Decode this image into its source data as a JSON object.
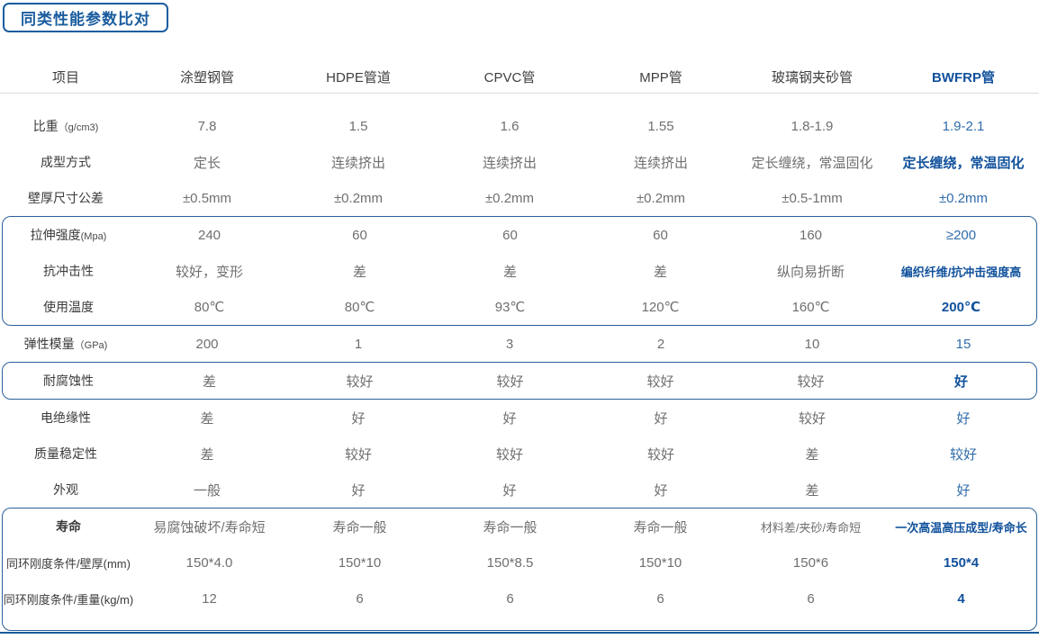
{
  "title": "同类性能参数比对",
  "colors": {
    "accent": "#1a5c9e",
    "value_blue": "#2f6cab",
    "bold_blue": "#11519c",
    "header_text": "#3f3f3f",
    "label_text": "#3b3b3b",
    "value_text": "#6f6f6f",
    "divider_gray": "#dcdcdc",
    "box_border_blue": "#2a609a"
  },
  "table": {
    "columns": [
      "项目",
      "涂塑钢管",
      "HDPE管道",
      "CPVC管",
      "MPP管",
      "玻璃钢夹砂管",
      "BWFRP管"
    ],
    "sections": [
      {
        "boxed": false,
        "rows": [
          {
            "label": "比重",
            "label_note": "（g/cm3)",
            "label_bold": false,
            "bwfrp_bold": false,
            "values": [
              "7.8",
              "1.5",
              "1.6",
              "1.55",
              "1.8-1.9",
              "1.9-2.1"
            ]
          },
          {
            "label": "成型方式",
            "label_note": "",
            "label_bold": false,
            "bwfrp_bold": true,
            "values": [
              "定长",
              "连续挤出",
              "连续挤出",
              "连续挤出",
              "定长缠绕，常温固化",
              "定长缠绕，常温固化"
            ]
          },
          {
            "label": "壁厚尺寸公差",
            "label_note": "",
            "label_bold": false,
            "bwfrp_bold": false,
            "values": [
              "±0.5mm",
              "±0.2mm",
              "±0.2mm",
              "±0.2mm",
              "±0.5-1mm",
              "±0.2mm"
            ]
          }
        ]
      },
      {
        "boxed": true,
        "rows": [
          {
            "label": "拉伸强度",
            "label_note": "(Mpa)",
            "label_bold": false,
            "bwfrp_bold": false,
            "values": [
              "240",
              "60",
              "60",
              "60",
              "160",
              "≥200"
            ]
          },
          {
            "label": "抗冲击性",
            "label_note": "",
            "label_bold": false,
            "bwfrp_bold": true,
            "values": [
              "较好，变形",
              "差",
              "差",
              "差",
              "纵向易折断",
              "编织纤维/抗冲击强度高"
            ]
          },
          {
            "label": "使用温度",
            "label_note": "",
            "label_bold": false,
            "bwfrp_bold": true,
            "values": [
              "80℃",
              "80℃",
              "93℃",
              "120℃",
              "160℃",
              "200℃"
            ]
          }
        ]
      },
      {
        "boxed": false,
        "rows": [
          {
            "label": "弹性模量",
            "label_note": "（GPa)",
            "label_bold": false,
            "bwfrp_bold": false,
            "values": [
              "200",
              "1",
              "3",
              "2",
              "10",
              "15"
            ]
          }
        ]
      },
      {
        "boxed": true,
        "rows": [
          {
            "label": "耐腐蚀性",
            "label_note": "",
            "label_bold": false,
            "bwfrp_bold": true,
            "values": [
              "差",
              "较好",
              "较好",
              "较好",
              "较好",
              "好"
            ]
          }
        ]
      },
      {
        "boxed": false,
        "rows": [
          {
            "label": "电绝缘性",
            "label_note": "",
            "label_bold": false,
            "bwfrp_bold": false,
            "values": [
              "差",
              "好",
              "好",
              "好",
              "较好",
              "好"
            ]
          },
          {
            "label": "质量稳定性",
            "label_note": "",
            "label_bold": false,
            "bwfrp_bold": false,
            "values": [
              "差",
              "较好",
              "较好",
              "较好",
              "差",
              "较好"
            ]
          },
          {
            "label": "外观",
            "label_note": "",
            "label_bold": false,
            "bwfrp_bold": false,
            "values": [
              "一般",
              "好",
              "好",
              "好",
              "差",
              "好"
            ]
          }
        ]
      },
      {
        "boxed": true,
        "rows": [
          {
            "label": "寿命",
            "label_note": "",
            "label_bold": true,
            "bwfrp_bold": true,
            "values": [
              "易腐蚀破坏/寿命短",
              "寿命一般",
              "寿命一般",
              "寿命一般",
              "材料差/夹砂/寿命短",
              "一次高温高压成型/寿命长"
            ]
          },
          {
            "label": "同环刚度条件/壁厚(mm)",
            "label_note": "",
            "label_bold": false,
            "bwfrp_bold": true,
            "values": [
              "150*4.0",
              "150*10",
              "150*8.5",
              "150*10",
              "150*6",
              "150*4"
            ]
          },
          {
            "label": "同环刚度条件/重量(kg/m)",
            "label_note": "",
            "label_bold": false,
            "bwfrp_bold": true,
            "values": [
              "12",
              "6",
              "6",
              "6",
              "6",
              "4"
            ]
          }
        ]
      }
    ]
  }
}
